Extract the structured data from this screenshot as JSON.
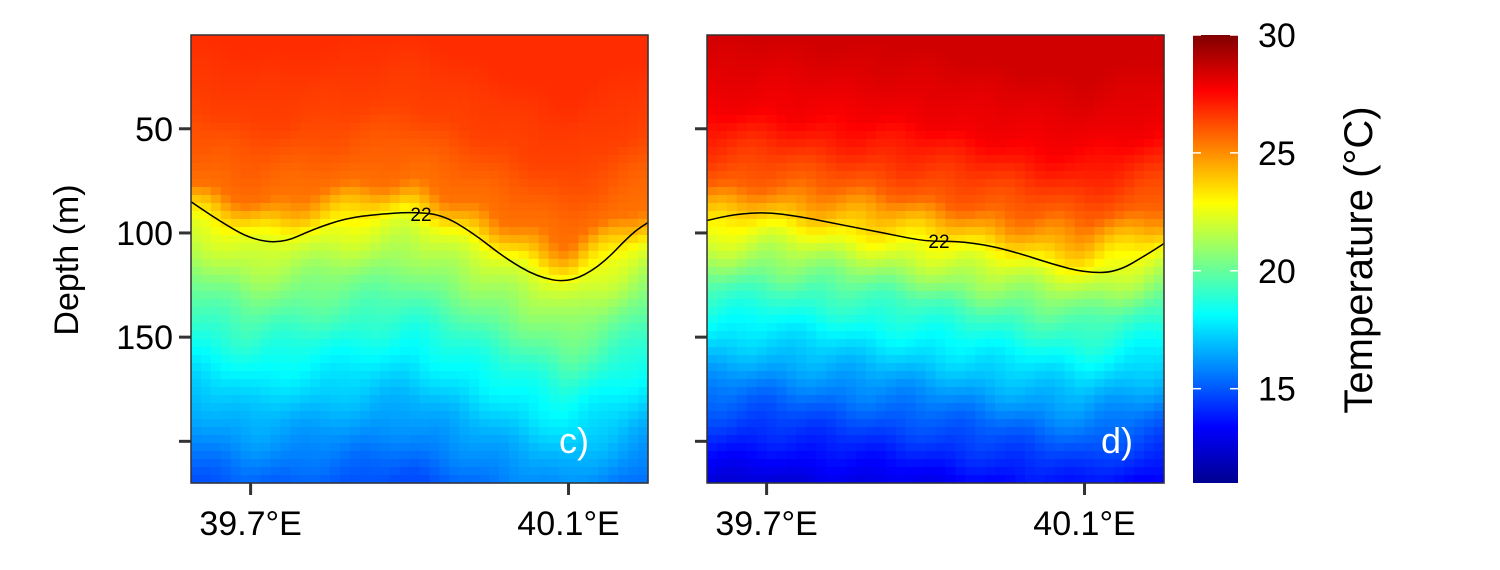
{
  "chart_data": {
    "type": "heatmap",
    "ylabel": "Depth (m)",
    "x_tick_labels": [
      "39.7°E",
      "40.1°E"
    ],
    "x_ticks": [
      39.7,
      40.1
    ],
    "y_ticks": [
      50,
      100,
      150,
      200
    ],
    "y_tick_labels": [
      "50",
      "100",
      "150",
      ""
    ],
    "ylim": [
      5,
      220
    ],
    "xlim": [
      39.625,
      40.2
    ],
    "colorbar": {
      "title": "Temperature (°C)",
      "range": [
        11,
        30
      ],
      "ticks": [
        15,
        20,
        25,
        30
      ],
      "colors": [
        "#00008f",
        "#0000ff",
        "#0080ff",
        "#00ffff",
        "#80ff80",
        "#ffff00",
        "#ff8000",
        "#ff0000",
        "#800000"
      ]
    },
    "panels": [
      {
        "label": "c)",
        "contour_label": "22",
        "contour_22": {
          "x": [
            39.625,
            39.66,
            39.7,
            39.74,
            39.78,
            39.82,
            39.86,
            39.9,
            39.94,
            39.98,
            40.02,
            40.06,
            40.1,
            40.14,
            40.18,
            40.2
          ],
          "y": [
            85,
            94,
            103,
            105,
            98,
            93,
            91,
            90,
            91,
            100,
            112,
            121,
            124,
            116,
            100,
            95
          ]
        },
        "depth_profile": [
          {
            "depth": 5,
            "t": 26.8
          },
          {
            "depth": 40,
            "t": 26.4
          },
          {
            "depth": 75,
            "t": 25.5
          },
          {
            "depth": 95,
            "t": 22.5
          },
          {
            "depth": 120,
            "t": 20.5
          },
          {
            "depth": 150,
            "t": 18.5
          },
          {
            "depth": 180,
            "t": 16.8
          },
          {
            "depth": 220,
            "t": 14.8
          }
        ],
        "contour_shift": [
          {
            "x": 39.625,
            "dz": 0
          },
          {
            "x": 39.7,
            "dz": 10
          },
          {
            "x": 39.9,
            "dz": -2
          },
          {
            "x": 40.1,
            "dz": 30
          },
          {
            "x": 40.2,
            "dz": 10
          }
        ]
      },
      {
        "label": "d)",
        "contour_label": "22",
        "contour_22": {
          "x": [
            39.625,
            39.66,
            39.7,
            39.74,
            39.78,
            39.82,
            39.86,
            39.9,
            39.94,
            39.98,
            40.02,
            40.06,
            40.1,
            40.14,
            40.18,
            40.2
          ],
          "y": [
            94,
            91,
            90,
            92,
            95,
            98,
            101,
            104,
            104,
            106,
            110,
            115,
            119,
            119,
            110,
            105
          ]
        },
        "depth_profile": [
          {
            "depth": 5,
            "t": 28.5
          },
          {
            "depth": 40,
            "t": 27.8
          },
          {
            "depth": 75,
            "t": 25.8
          },
          {
            "depth": 100,
            "t": 22.5
          },
          {
            "depth": 125,
            "t": 19.5
          },
          {
            "depth": 150,
            "t": 17.5
          },
          {
            "depth": 180,
            "t": 15.2
          },
          {
            "depth": 220,
            "t": 12.5
          }
        ],
        "contour_shift": [
          {
            "x": 39.625,
            "dz": 2
          },
          {
            "x": 39.7,
            "dz": 0
          },
          {
            "x": 39.9,
            "dz": 8
          },
          {
            "x": 40.1,
            "dz": 20
          },
          {
            "x": 40.2,
            "dz": 10
          }
        ]
      }
    ]
  }
}
